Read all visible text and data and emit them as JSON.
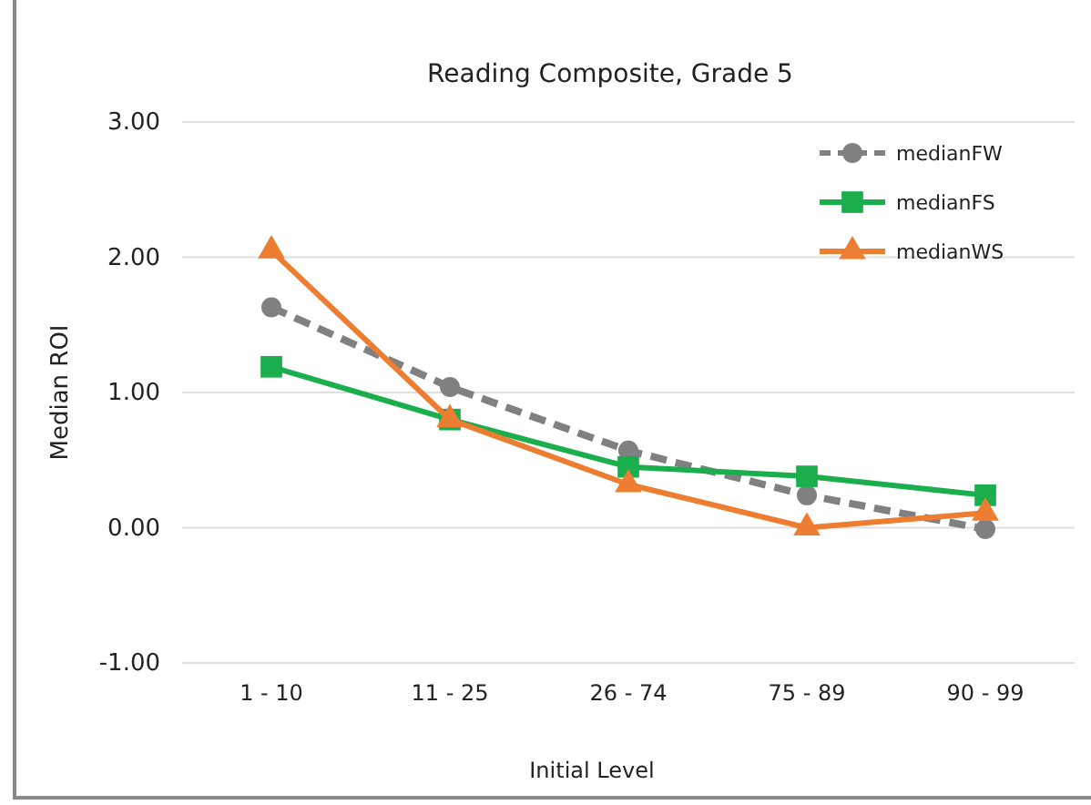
{
  "chart_data": {
    "type": "line",
    "title": "Reading Composite, Grade 5",
    "xlabel": "Initial Level",
    "ylabel": "Median ROI",
    "categories": [
      "1 - 10",
      "11 - 25",
      "26 - 74",
      "75 - 89",
      "90 - 99"
    ],
    "series": [
      {
        "name": "medianFW",
        "color": "#808080",
        "values": [
          1.63,
          1.04,
          0.57,
          0.24,
          -0.01
        ],
        "marker": "circle",
        "line_style": "dashed"
      },
      {
        "name": "medianFS",
        "color": "#1aae4c",
        "values": [
          1.19,
          0.8,
          0.45,
          0.38,
          0.24
        ],
        "marker": "square",
        "line_style": "solid"
      },
      {
        "name": "medianWS",
        "color": "#ed7d31",
        "values": [
          2.05,
          0.8,
          0.32,
          0.0,
          0.11
        ],
        "marker": "triangle",
        "line_style": "solid"
      }
    ],
    "ylim": [
      -1,
      3
    ],
    "yticks": [
      {
        "value": -1,
        "label": "-1.00"
      },
      {
        "value": 0,
        "label": "0.00"
      },
      {
        "value": 1,
        "label": "1.00"
      },
      {
        "value": 2,
        "label": "2.00"
      },
      {
        "value": 3,
        "label": "3.00"
      }
    ],
    "grid": "y",
    "legend": "top right"
  }
}
